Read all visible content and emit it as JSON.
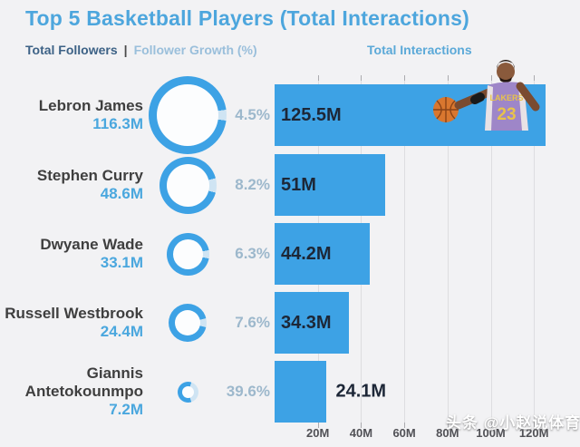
{
  "title": "Top 5 Basketball Players (Total Interactions)",
  "legend": {
    "followers_label": "Total Followers",
    "separator": "|",
    "growth_label": "Follower Growth (%)",
    "interactions_label": "Total Interactions"
  },
  "watermark": "头条 @小赵说体育",
  "colors": {
    "bar_blue": "#3da2e5",
    "title_blue": "#4da6dd",
    "followers_blue": "#4aa7de",
    "muted_pct": "#9db8cc",
    "dark_value": "#1d2737",
    "donut_gap": "#cfe4f3",
    "grid": "#dddde0",
    "background": "#f2f2f4"
  },
  "players": [
    {
      "name": "Lebron James",
      "followers": "116.3M",
      "growth_label": "4.5%",
      "growth_pct": 4.5,
      "interactions_label": "125.5M",
      "interactions_m": 125.5
    },
    {
      "name": "Stephen Curry",
      "followers": "48.6M",
      "growth_label": "8.2%",
      "growth_pct": 8.2,
      "interactions_label": "51M",
      "interactions_m": 51
    },
    {
      "name": "Dwyane Wade",
      "followers": "33.1M",
      "growth_label": "6.3%",
      "growth_pct": 6.3,
      "interactions_label": "44.2M",
      "interactions_m": 44.2
    },
    {
      "name": "Russell Westbrook",
      "followers": "24.4M",
      "growth_label": "7.6%",
      "growth_pct": 7.6,
      "interactions_label": "34.3M",
      "interactions_m": 34.3
    },
    {
      "name": "Giannis Antetokounmpo",
      "followers": "7.2M",
      "growth_label": "39.6%",
      "growth_pct": 39.6,
      "interactions_label": "24.1M",
      "interactions_m": 24.1
    }
  ],
  "chart_data": {
    "type": "bar",
    "orientation": "horizontal",
    "title": "Top 5 Basketball Players (Total Interactions)",
    "categories": [
      "Lebron James",
      "Stephen Curry",
      "Dwyane Wade",
      "Russell Westbrook",
      "Giannis Antetokounmpo"
    ],
    "series": [
      {
        "name": "Total Followers (M)",
        "values": [
          116.3,
          48.6,
          33.1,
          24.4,
          7.2
        ]
      },
      {
        "name": "Follower Growth (%)",
        "values": [
          4.5,
          8.2,
          6.3,
          7.6,
          39.6
        ]
      },
      {
        "name": "Total Interactions (M)",
        "values": [
          125.5,
          51,
          44.2,
          34.3,
          24.1
        ]
      }
    ],
    "x_ticks": [
      "20M",
      "40M",
      "60M",
      "80M",
      "100M",
      "120M"
    ],
    "x_tick_values_m": [
      20,
      40,
      60,
      80,
      100,
      120
    ],
    "xlim": [
      0,
      140
    ],
    "grid": true,
    "legend_position": "top"
  }
}
